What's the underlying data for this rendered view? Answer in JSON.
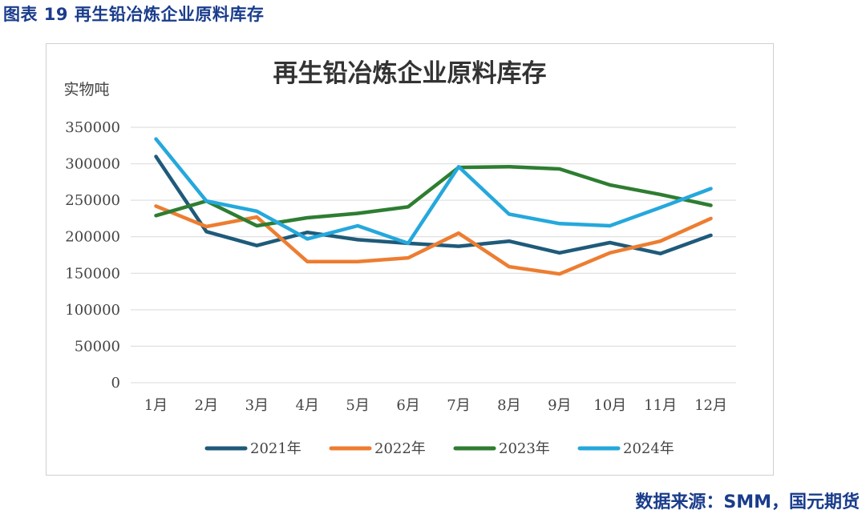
{
  "figure_caption": "图表 19 再生铅冶炼企业原料库存",
  "source_note": "数据来源：SMM，国元期货",
  "colors": {
    "2021年": "#1f5a7a",
    "2022年": "#ed7d31",
    "2023年": "#2e7d32",
    "2024年": "#25a8dc",
    "grid": "#d9d9d9",
    "axis_text": "#444444",
    "title_text": "#333333",
    "caption": "#1a3c8c"
  },
  "chart_data": {
    "type": "line",
    "title": "再生铅冶炼企业原料库存",
    "ylabel": "实物吨",
    "xlabel": "",
    "ylim": [
      0,
      350000
    ],
    "yticks": [
      0,
      50000,
      100000,
      150000,
      200000,
      250000,
      300000,
      350000
    ],
    "yticklabels": [
      "0",
      "50000",
      "100000",
      "150000",
      "200000",
      "250000",
      "300000",
      "350000"
    ],
    "grid": true,
    "legend_position": "bottom",
    "categories": [
      "1月",
      "2月",
      "3月",
      "4月",
      "5月",
      "6月",
      "7月",
      "8月",
      "9月",
      "10月",
      "11月",
      "12月"
    ],
    "series": [
      {
        "name": "2021年",
        "values": [
          310000,
          207000,
          188000,
          206000,
          196000,
          191000,
          187000,
          194000,
          178000,
          192000,
          177000,
          202000
        ]
      },
      {
        "name": "2022年",
        "values": [
          242000,
          214000,
          227000,
          166000,
          166000,
          171000,
          205000,
          159000,
          149000,
          178000,
          194000,
          225000
        ]
      },
      {
        "name": "2023年",
        "values": [
          229000,
          249000,
          215000,
          226000,
          232000,
          241000,
          295000,
          296000,
          293000,
          271000,
          258000,
          243000
        ]
      },
      {
        "name": "2024年",
        "values": [
          334000,
          249000,
          235000,
          197000,
          215000,
          191000,
          296000,
          231000,
          218000,
          215000,
          240000,
          266000
        ]
      }
    ]
  }
}
